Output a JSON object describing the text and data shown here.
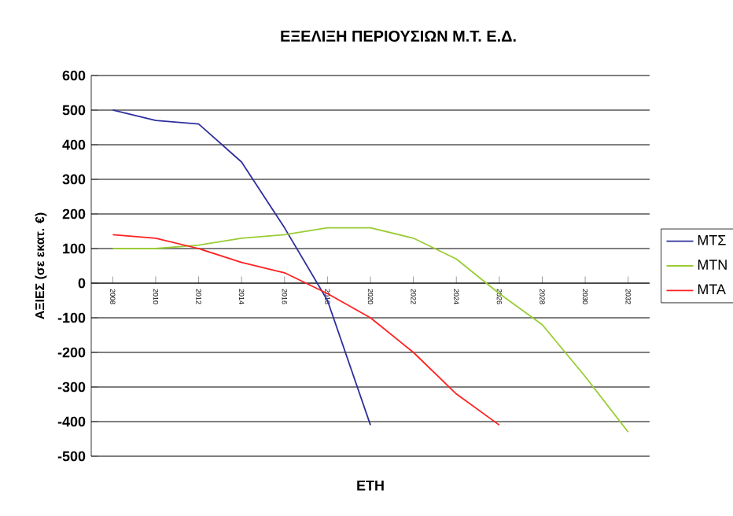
{
  "chart_data": {
    "type": "line",
    "title": "ΕΞΕΛΙΞΗ ΠΕΡΙΟΥΣΙΩΝ Μ.Τ. Ε.Δ.",
    "xlabel": "ΕΤΗ",
    "ylabel": "ΑΞΙΕΣ (σε εκατ. €)",
    "categories": [
      "2008",
      "2010",
      "2012",
      "2014",
      "2016",
      "2018",
      "2020",
      "2022",
      "2024",
      "2026",
      "2028",
      "2030",
      "2032"
    ],
    "series": [
      {
        "name": "ΜΤΣ",
        "color": "#2e2e9e",
        "values": [
          500,
          470,
          460,
          350,
          160,
          -50,
          -410,
          null,
          null,
          null,
          null,
          null,
          null
        ]
      },
      {
        "name": "ΜΤΝ",
        "color": "#99cc33",
        "values": [
          100,
          100,
          110,
          130,
          140,
          160,
          160,
          130,
          70,
          -30,
          -120,
          -270,
          -430
        ]
      },
      {
        "name": "ΜΤΑ",
        "color": "#ff2020",
        "values": [
          140,
          130,
          100,
          60,
          30,
          -30,
          -100,
          -200,
          -320,
          -410,
          null,
          null,
          null
        ]
      }
    ],
    "ylim": [
      -500,
      600
    ],
    "yticks": [
      -500,
      -400,
      -300,
      -200,
      -100,
      0,
      100,
      200,
      300,
      400,
      500,
      600
    ],
    "grid": "y",
    "legend": "right",
    "marker": "none",
    "line_style": "solid"
  }
}
